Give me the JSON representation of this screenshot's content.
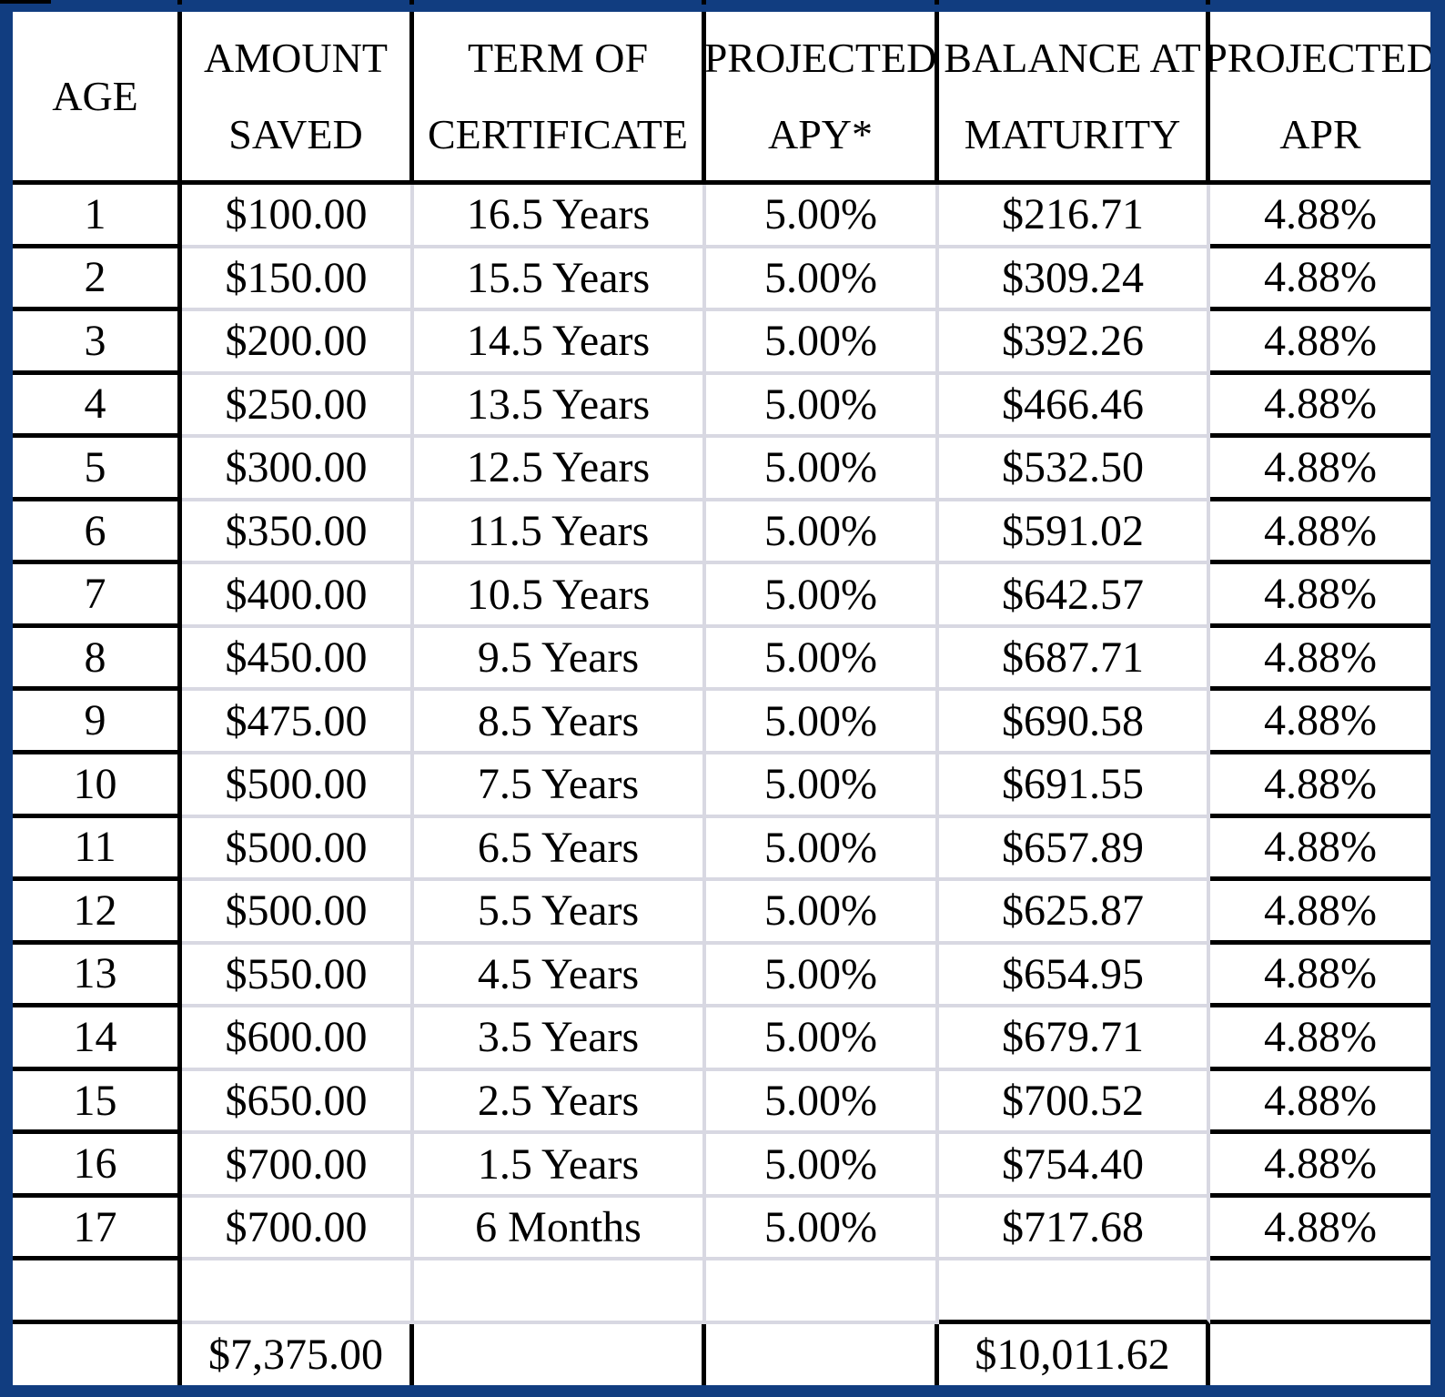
{
  "table": {
    "headers": [
      {
        "lines": [
          "AGE"
        ]
      },
      {
        "lines": [
          "AMOUNT",
          "SAVED"
        ]
      },
      {
        "lines": [
          "TERM OF",
          "CERTIFICATE"
        ]
      },
      {
        "lines": [
          "PROJECTED",
          "APY*"
        ]
      },
      {
        "lines": [
          "BALANCE AT",
          "MATURITY"
        ]
      },
      {
        "lines": [
          "PROJECTED",
          "APR"
        ]
      }
    ],
    "rows": [
      {
        "cells": [
          "1",
          "$100.00",
          "16.5 Years",
          "5.00%",
          "$216.71",
          "4.88%"
        ]
      },
      {
        "cells": [
          "2",
          "$150.00",
          "15.5 Years",
          "5.00%",
          "$309.24",
          "4.88%"
        ]
      },
      {
        "cells": [
          "3",
          "$200.00",
          "14.5 Years",
          "5.00%",
          "$392.26",
          "4.88%"
        ]
      },
      {
        "cells": [
          "4",
          "$250.00",
          "13.5 Years",
          "5.00%",
          "$466.46",
          "4.88%"
        ]
      },
      {
        "cells": [
          "5",
          "$300.00",
          "12.5 Years",
          "5.00%",
          "$532.50",
          "4.88%"
        ]
      },
      {
        "cells": [
          "6",
          "$350.00",
          "11.5 Years",
          "5.00%",
          "$591.02",
          "4.88%"
        ]
      },
      {
        "cells": [
          "7",
          "$400.00",
          "10.5 Years",
          "5.00%",
          "$642.57",
          "4.88%"
        ]
      },
      {
        "cells": [
          "8",
          "$450.00",
          "9.5 Years",
          "5.00%",
          "$687.71",
          "4.88%"
        ]
      },
      {
        "cells": [
          "9",
          "$475.00",
          "8.5 Years",
          "5.00%",
          "$690.58",
          "4.88%"
        ]
      },
      {
        "cells": [
          "10",
          "$500.00",
          "7.5 Years",
          "5.00%",
          "$691.55",
          "4.88%"
        ]
      },
      {
        "cells": [
          "11",
          "$500.00",
          "6.5 Years",
          "5.00%",
          "$657.89",
          "4.88%"
        ]
      },
      {
        "cells": [
          "12",
          "$500.00",
          "5.5 Years",
          "5.00%",
          "$625.87",
          "4.88%"
        ]
      },
      {
        "cells": [
          "13",
          "$550.00",
          "4.5 Years",
          "5.00%",
          "$654.95",
          "4.88%"
        ]
      },
      {
        "cells": [
          "14",
          "$600.00",
          "3.5 Years",
          "5.00%",
          "$679.71",
          "4.88%"
        ]
      },
      {
        "cells": [
          "15",
          "$650.00",
          "2.5 Years",
          "5.00%",
          "$700.52",
          "4.88%"
        ]
      },
      {
        "cells": [
          "16",
          "$700.00",
          "1.5 Years",
          "5.00%",
          "$754.40",
          "4.88%"
        ]
      },
      {
        "cells": [
          "17",
          "$700.00",
          "6 Months",
          "5.00%",
          "$717.68",
          "4.88%"
        ]
      }
    ],
    "totals": {
      "amount_saved": "$7,375.00",
      "balance_at_maturity": "$10,011.62"
    }
  },
  "colors": {
    "frame_blue": "#113d80",
    "gridline_light": "#d8d8e2",
    "gridline_dark": "#000000",
    "background": "#ffffff"
  }
}
